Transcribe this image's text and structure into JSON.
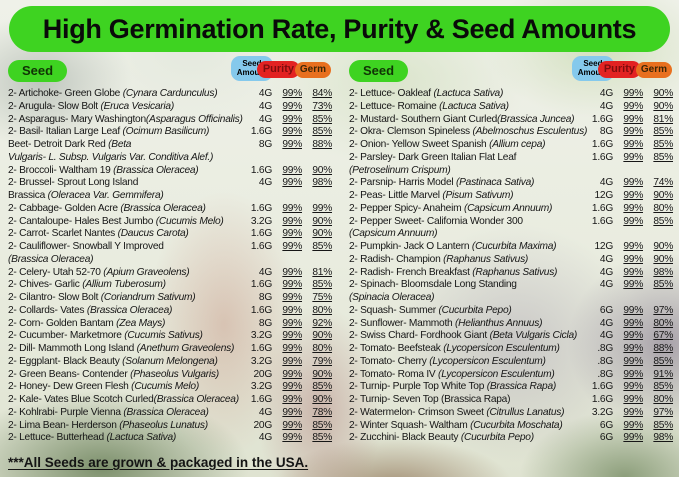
{
  "title": "High Germination Rate, Purity & Seed Amounts",
  "header": {
    "seed": "Seed",
    "amount_line1": "Seed",
    "amount_line2": "Amount",
    "purity": "Purity",
    "germ": "Germ"
  },
  "footer": "***All Seeds are grown & packaged in the USA.",
  "colors": {
    "title_green": "#3ed321",
    "seed_pill_green": "#3ed321",
    "amount_pill_blue": "#85c9ec",
    "purity_pill_red": "#e32222",
    "germ_pill_orange": "#e8701f",
    "text": "#161616"
  },
  "left_rows": [
    {
      "name": "2- Artichoke- Green Globe ",
      "sci": "(Cynara Cardunculus)",
      "amount": "4G",
      "purity": "99%",
      "germ": "84%"
    },
    {
      "name": "2- Arugula- Slow Bolt ",
      "sci": "(Eruca Vesicaria)",
      "amount": "4G",
      "purity": "99%",
      "germ": "73%"
    },
    {
      "name": "2- Asparagus- Mary Washington",
      "sci": "(Asparagus Officinalis)",
      "amount": "4G",
      "purity": "99%",
      "germ": "85%"
    },
    {
      "name": "2- Basil- Italian Large Leaf ",
      "sci": "(Ocimum Basilicum)",
      "amount": "1.6G",
      "purity": "99%",
      "germ": "85%"
    },
    {
      "name": "Beet- Detroit Dark Red ",
      "sci": "(Beta",
      "amount": "8G",
      "purity": "99%",
      "germ": "88%"
    },
    {
      "name": "",
      "sci": "Vulgaris- L. Subsp. Vulgaris Var. Conditiva Alef.)",
      "amount": "",
      "purity": "",
      "germ": ""
    },
    {
      "name": "2- Broccoli- Waltham 19 ",
      "sci": "(Brassica Oleracea)",
      "amount": "1.6G",
      "purity": "99%",
      "germ": "90%"
    },
    {
      "name": "2- Brussel- Sprout Long Island",
      "sci": "",
      "amount": "4G",
      "purity": "99%",
      "germ": "98%"
    },
    {
      "name": "Brassica ",
      "sci": "(Oleracea Var. Gemmifera)",
      "amount": "",
      "purity": "",
      "germ": ""
    },
    {
      "name": "2- Cabbage- Golden Acre ",
      "sci": "(Brassica Oleracea)",
      "amount": "1.6G",
      "purity": "99%",
      "germ": "99%"
    },
    {
      "name": "2- Cantaloupe- Hales Best Jumbo ",
      "sci": "(Cucumis Melo)",
      "amount": "3.2G",
      "purity": "99%",
      "germ": "90%"
    },
    {
      "name": "2- Carrot- Scarlet Nantes ",
      "sci": "(Daucus Carota)",
      "amount": "1.6G",
      "purity": "99%",
      "germ": "90%"
    },
    {
      "name": "2- Cauliflower- Snowball Y Improved",
      "sci": "",
      "amount": "1.6G",
      "purity": "99%",
      "germ": "85%"
    },
    {
      "name": "",
      "sci": "(Brassica Oleracea)",
      "amount": "",
      "purity": "",
      "germ": ""
    },
    {
      "name": "2- Celery- Utah 52-70 ",
      "sci": "(Apium Graveolens)",
      "amount": "4G",
      "purity": "99%",
      "germ": "81%"
    },
    {
      "name": "2- Chives- Garlic ",
      "sci": "(Allium Tuberosum)",
      "amount": "1.6G",
      "purity": "99%",
      "germ": "85%"
    },
    {
      "name": "2- Cilantro- Slow Bolt ",
      "sci": "(Coriandrum Sativum)",
      "amount": "8G",
      "purity": "99%",
      "germ": "75%"
    },
    {
      "name": "2- Collards- Vates ",
      "sci": "(Brassica Oleracea)",
      "amount": "1.6G",
      "purity": "99%",
      "germ": "80%"
    },
    {
      "name": "2- Corn- Golden Bantam ",
      "sci": "(Zea Mays)",
      "amount": "8G",
      "purity": "99%",
      "germ": "92%"
    },
    {
      "name": "2- Cucumber- Marketmore ",
      "sci": "(Cucumis Sativus)",
      "amount": "3.2G",
      "purity": "99%",
      "germ": "90%"
    },
    {
      "name": "2- Dill- Mammoth Long Island ",
      "sci": "(Anethum Graveolens)",
      "amount": "1.6G",
      "purity": "99%",
      "germ": "80%"
    },
    {
      "name": "2- Eggplant- Black Beauty ",
      "sci": "(Solanum Melongena)",
      "amount": "3.2G",
      "purity": "99%",
      "germ": "79%"
    },
    {
      "name": "2- Green Beans- Contender ",
      "sci": "(Phaseolus Vulgaris)",
      "amount": "20G",
      "purity": "99%",
      "germ": "90%"
    },
    {
      "name": "2- Honey- Dew Green Flesh ",
      "sci": "(Cucumis Melo)",
      "amount": "3.2G",
      "purity": "99%",
      "germ": "85%"
    },
    {
      "name": "2- Kale- Vates Blue Scotch Curled",
      "sci": "(Brassica Oleracea)",
      "amount": "1.6G",
      "purity": "99%",
      "germ": "90%"
    },
    {
      "name": "2- Kohlrabi- Purple Vienna ",
      "sci": "(Brassica Oleracea)",
      "amount": "4G",
      "purity": "99%",
      "germ": "78%"
    },
    {
      "name": "2- Lima Bean- Herderson ",
      "sci": "(Phaseolus Lunatus)",
      "amount": "20G",
      "purity": "99%",
      "germ": "85%"
    },
    {
      "name": "2- Lettuce- Butterhead ",
      "sci": "(Lactuca Sativa)",
      "amount": "4G",
      "purity": "99%",
      "germ": "85%"
    }
  ],
  "right_rows": [
    {
      "name": "2- Lettuce- Oakleaf ",
      "sci": "(Lactuca Sativa)",
      "amount": "4G",
      "purity": "99%",
      "germ": "90%"
    },
    {
      "name": "2- Lettuce- Romaine ",
      "sci": "(Lactuca Sativa)",
      "amount": "4G",
      "purity": "99%",
      "germ": "90%"
    },
    {
      "name": "2- Mustard- Southern Giant Curled",
      "sci": "(Brassica Juncea)",
      "amount": "1.6G",
      "purity": "99%",
      "germ": "81%"
    },
    {
      "name": "2- Okra- Clemson Spineless ",
      "sci": "(Abelmoschus Esculentus)",
      "amount": "8G",
      "purity": "99%",
      "germ": "85%"
    },
    {
      "name": "2- Onion- Yellow Sweet Spanish ",
      "sci": "(Allium cepa)",
      "amount": "1.6G",
      "purity": "99%",
      "germ": "85%"
    },
    {
      "name": "2- Parsley- Dark Green Italian Flat Leaf",
      "sci": "",
      "amount": "1.6G",
      "purity": "99%",
      "germ": "85%"
    },
    {
      "name": "",
      "sci": "(Petroselinum Crispum)",
      "amount": "",
      "purity": "",
      "germ": ""
    },
    {
      "name": "2- Parsnip- Harris Model ",
      "sci": "(Pastinaca Sativa)",
      "amount": "4G",
      "purity": "99%",
      "germ": "74%"
    },
    {
      "name": "2- Peas- Little Marvel ",
      "sci": "(Pisum Sativum)",
      "amount": "12G",
      "purity": "99%",
      "germ": "90%"
    },
    {
      "name": "2- Pepper Spicy- Anaheim ",
      "sci": "(Capsicum Annuum)",
      "amount": "1.6G",
      "purity": "99%",
      "germ": "80%"
    },
    {
      "name": "2- Pepper Sweet- California Wonder 300",
      "sci": "",
      "amount": "1.6G",
      "purity": "99%",
      "germ": "85%"
    },
    {
      "name": "",
      "sci": "(Capsicum Annuum)",
      "amount": "",
      "purity": "",
      "germ": ""
    },
    {
      "name": "2- Pumpkin- Jack O Lantern ",
      "sci": "(Cucurbita Maxima)",
      "amount": "12G",
      "purity": "99%",
      "germ": "90%"
    },
    {
      "name": "2- Radish- Champion ",
      "sci": "(Raphanus Sativus)",
      "amount": "4G",
      "purity": "99%",
      "germ": "90%"
    },
    {
      "name": "2- Radish- French Breakfast ",
      "sci": "(Raphanus Sativus)",
      "amount": "4G",
      "purity": "99%",
      "germ": "98%"
    },
    {
      "name": "2- Spinach- Bloomsdale Long Standing",
      "sci": "",
      "amount": "4G",
      "purity": "99%",
      "germ": "85%"
    },
    {
      "name": "",
      "sci": "(Spinacia Oleracea)",
      "amount": "",
      "purity": "",
      "germ": ""
    },
    {
      "name": "2- Squash- Summer ",
      "sci": "(Cucurbita Pepo)",
      "amount": "6G",
      "purity": "99%",
      "germ": "97%"
    },
    {
      "name": "2- Sunflower- Mammoth ",
      "sci": "(Helianthus Annuus)",
      "amount": "4G",
      "purity": "99%",
      "germ": "80%"
    },
    {
      "name": "2- Swiss Chard- Fordhook Giant ",
      "sci": "(Beta Vulgaris Cicla)",
      "amount": "4G",
      "purity": "99%",
      "germ": "67%"
    },
    {
      "name": "2- Tomato- Beefsteak ",
      "sci": "(Lycopersicon Esculentum)",
      "amount": ".8G",
      "purity": "99%",
      "germ": "88%"
    },
    {
      "name": "2- Tomato- Cherry ",
      "sci": "(Lycopersicon Esculentum)",
      "amount": ".8G",
      "purity": "99%",
      "germ": "85%"
    },
    {
      "name": "2- Tomato- Roma IV  ",
      "sci": "(Lycopersicon Esculentum)",
      "amount": ".8G",
      "purity": "99%",
      "germ": "91%"
    },
    {
      "name": "2- Turnip- Purple Top White Top ",
      "sci": "(Brassica Rapa)",
      "amount": "1.6G",
      "purity": "99%",
      "germ": "85%"
    },
    {
      "name": "2- Turnip- Seven Top (Brassica Rapa)",
      "sci": "",
      "amount": "1.6G",
      "purity": "99%",
      "germ": "80%"
    },
    {
      "name": "2- Watermelon- Crimson Sweet ",
      "sci": "(Citrullus Lanatus)",
      "amount": "3.2G",
      "purity": "99%",
      "germ": "97%"
    },
    {
      "name": "2- Winter Squash- Waltham ",
      "sci": "(Cucurbita Moschata)",
      "amount": "6G",
      "purity": "99%",
      "germ": "85%"
    },
    {
      "name": "2- Zucchini-  Black Beauty ",
      "sci": "(Cucurbita Pepo)",
      "amount": "6G",
      "purity": "99%",
      "germ": "98%"
    }
  ]
}
